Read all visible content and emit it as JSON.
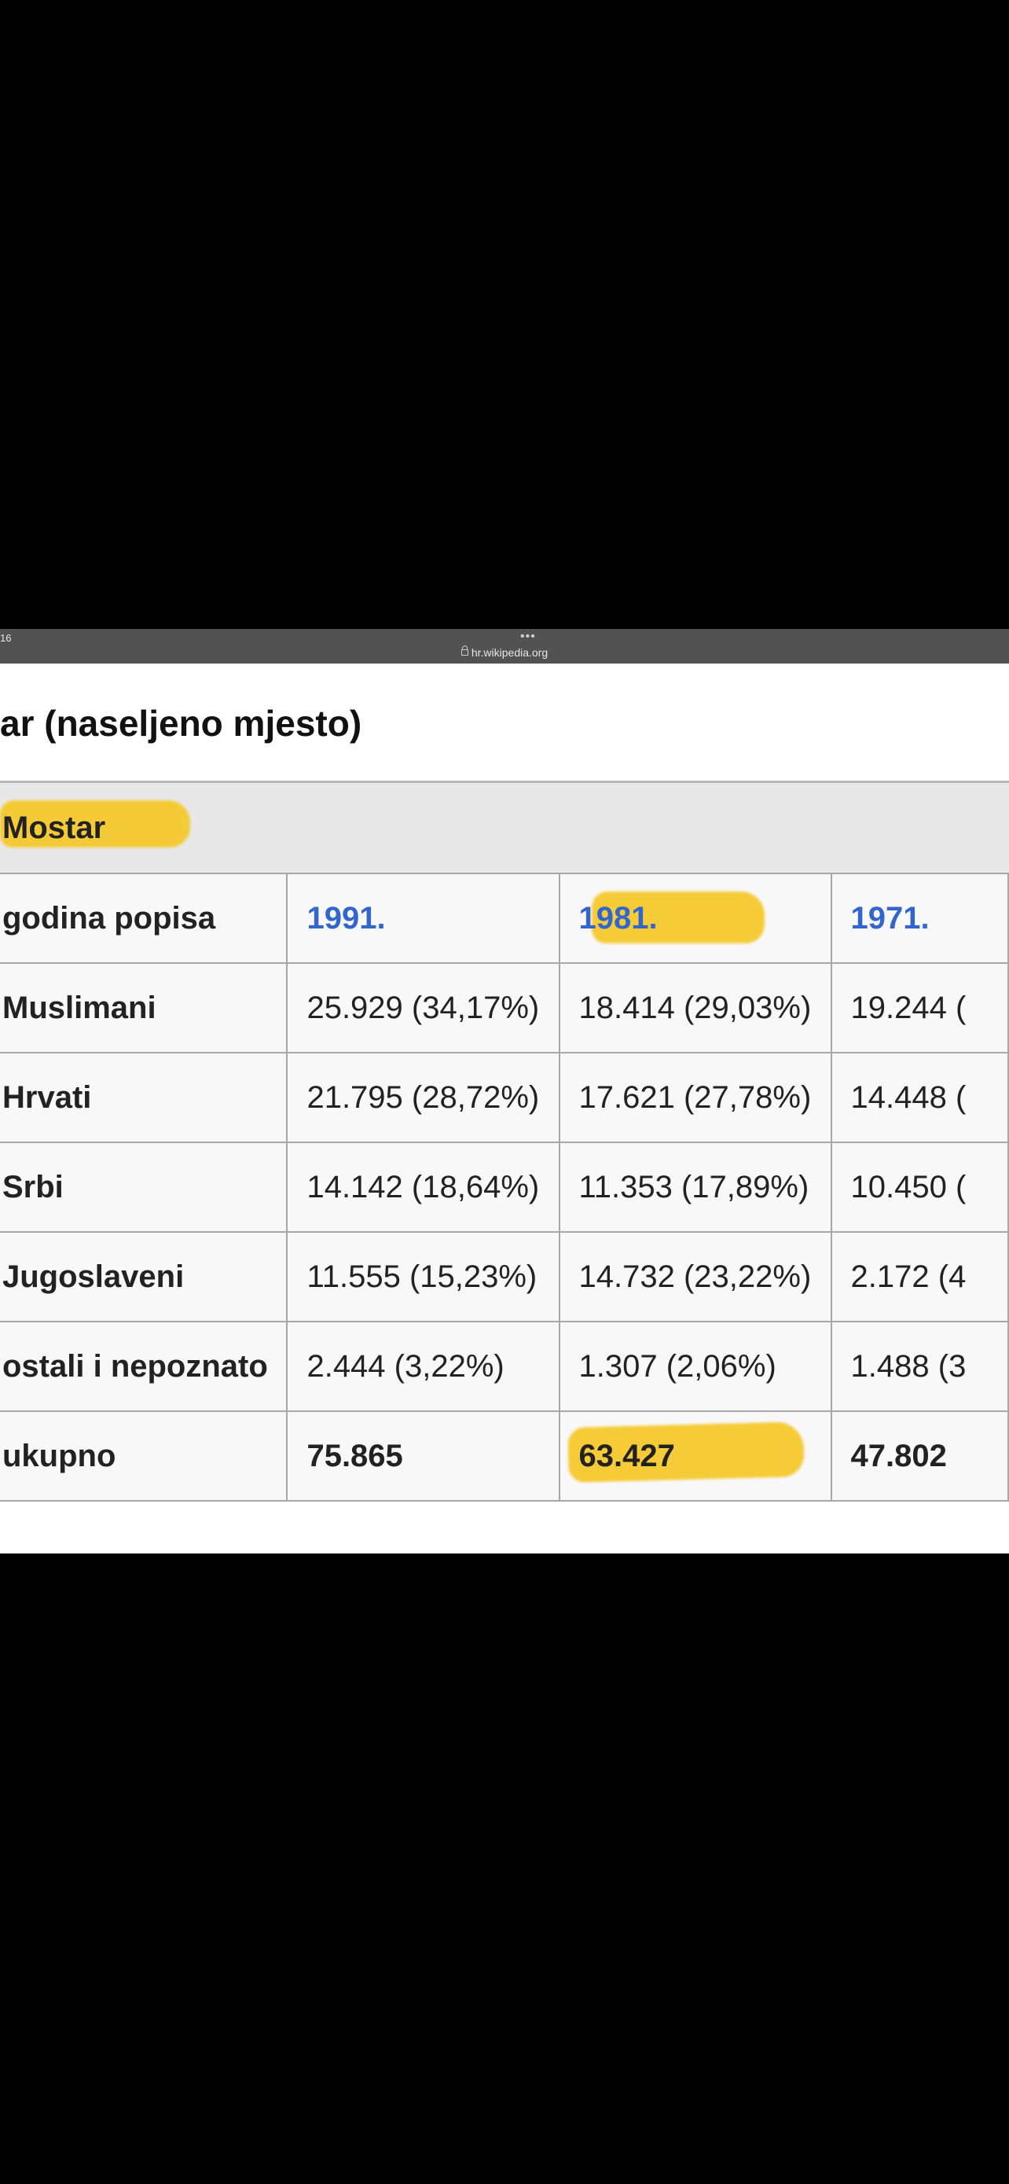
{
  "status_bar": {
    "time_fragment": "16"
  },
  "browser": {
    "url": "hr.wikipedia.org",
    "more_dots": "•••"
  },
  "article": {
    "title": "ar (naseljeno mjesto)"
  },
  "table": {
    "caption": "Mostar",
    "header_label": "godina popisa",
    "years": [
      "1991.",
      "1981.",
      "1971."
    ],
    "rows": [
      {
        "label": "Muslimani",
        "values": [
          "25.929 (34,17%)",
          "18.414 (29,03%)",
          "19.244 ("
        ]
      },
      {
        "label": "Hrvati",
        "values": [
          "21.795 (28,72%)",
          "17.621 (27,78%)",
          "14.448 ("
        ]
      },
      {
        "label": "Srbi",
        "values": [
          "14.142 (18,64%)",
          "11.353 (17,89%)",
          "10.450 ("
        ]
      },
      {
        "label": "Jugoslaveni",
        "values": [
          "11.555 (15,23%)",
          "14.732 (23,22%)",
          "2.172 (4"
        ]
      },
      {
        "label": "ostali i nepoznato",
        "values": [
          "2.444 (3,22%)",
          "1.307 (2,06%)",
          "1.488 (3"
        ]
      }
    ],
    "total": {
      "label": "ukupno",
      "values": [
        "75.865",
        "63.427",
        "47.802"
      ]
    }
  },
  "colors": {
    "highlight": "#f6c92e",
    "link": "#3366cc",
    "browser_bar": "#525252"
  }
}
